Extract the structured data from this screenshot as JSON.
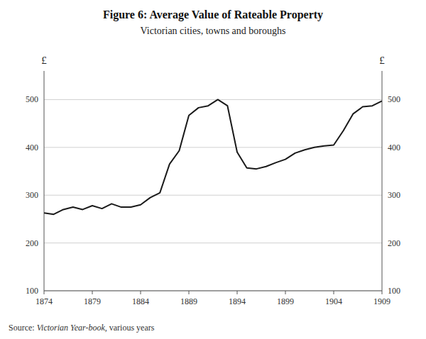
{
  "chart_data": {
    "type": "line",
    "title": "Figure 6: Average Value of Rateable Property",
    "subtitle": "Victorian cities, towns and boroughs",
    "ylabel": "£",
    "y2label": "£",
    "source": [
      "Source: ",
      "Victorian Year-book",
      ", various years"
    ],
    "x": [
      1874,
      1875,
      1876,
      1877,
      1878,
      1879,
      1880,
      1881,
      1882,
      1883,
      1884,
      1885,
      1886,
      1887,
      1888,
      1889,
      1890,
      1891,
      1892,
      1893,
      1894,
      1895,
      1896,
      1897,
      1898,
      1899,
      1900,
      1901,
      1902,
      1903,
      1904,
      1905,
      1906,
      1907,
      1908,
      1909
    ],
    "values": [
      263,
      260,
      270,
      275,
      270,
      278,
      272,
      282,
      275,
      275,
      280,
      295,
      305,
      365,
      393,
      467,
      483,
      487,
      500,
      487,
      390,
      357,
      355,
      360,
      368,
      375,
      388,
      395,
      400,
      403,
      405,
      435,
      470,
      485,
      487,
      497
    ],
    "color": "#1a1a1a",
    "xlim": [
      1874,
      1909
    ],
    "xticks": [
      1874,
      1879,
      1884,
      1889,
      1894,
      1899,
      1904,
      1909
    ],
    "ylim": [
      100,
      560
    ],
    "yticks": [
      100,
      200,
      300,
      400,
      500
    ],
    "y2lim": [
      100,
      560
    ],
    "y2ticks": [
      100,
      200,
      300,
      400,
      500
    ],
    "grid": true
  }
}
